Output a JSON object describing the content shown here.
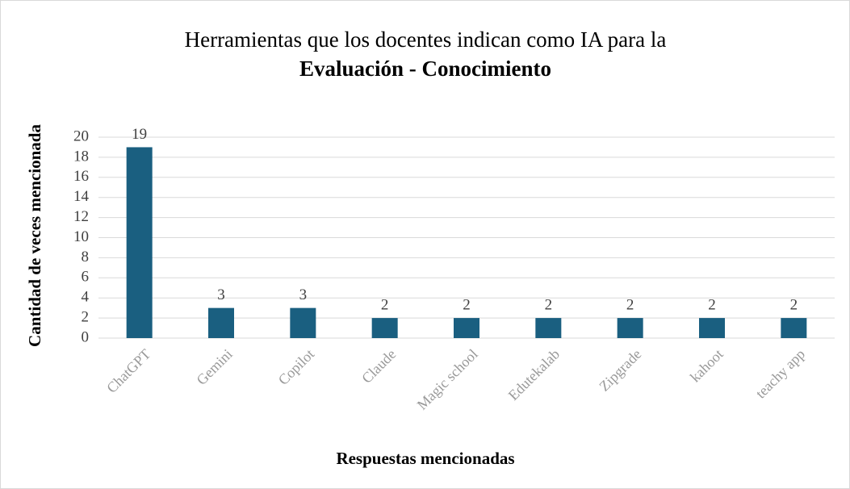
{
  "chart_data": {
    "type": "bar",
    "title": "Herramientas que los docentes indican como IA para la",
    "subtitle": "Evaluación - Conocimiento",
    "x_label": "Respuestas mencionadas",
    "y_label": "Cantidad de veces mencionada",
    "categories": [
      "ChatGPT",
      "Gemini",
      "Copilot",
      "Claude",
      "Magic school",
      "Edutekalab",
      "Zipgrade",
      "kahoot",
      "teachy app"
    ],
    "values": [
      19,
      3,
      3,
      2,
      2,
      2,
      2,
      2,
      2
    ],
    "color": "#1a5f80",
    "ylim": [
      0,
      20
    ],
    "yticks": [
      0,
      2,
      4,
      6,
      8,
      10,
      12,
      14,
      16,
      18,
      20
    ],
    "grid": true
  }
}
